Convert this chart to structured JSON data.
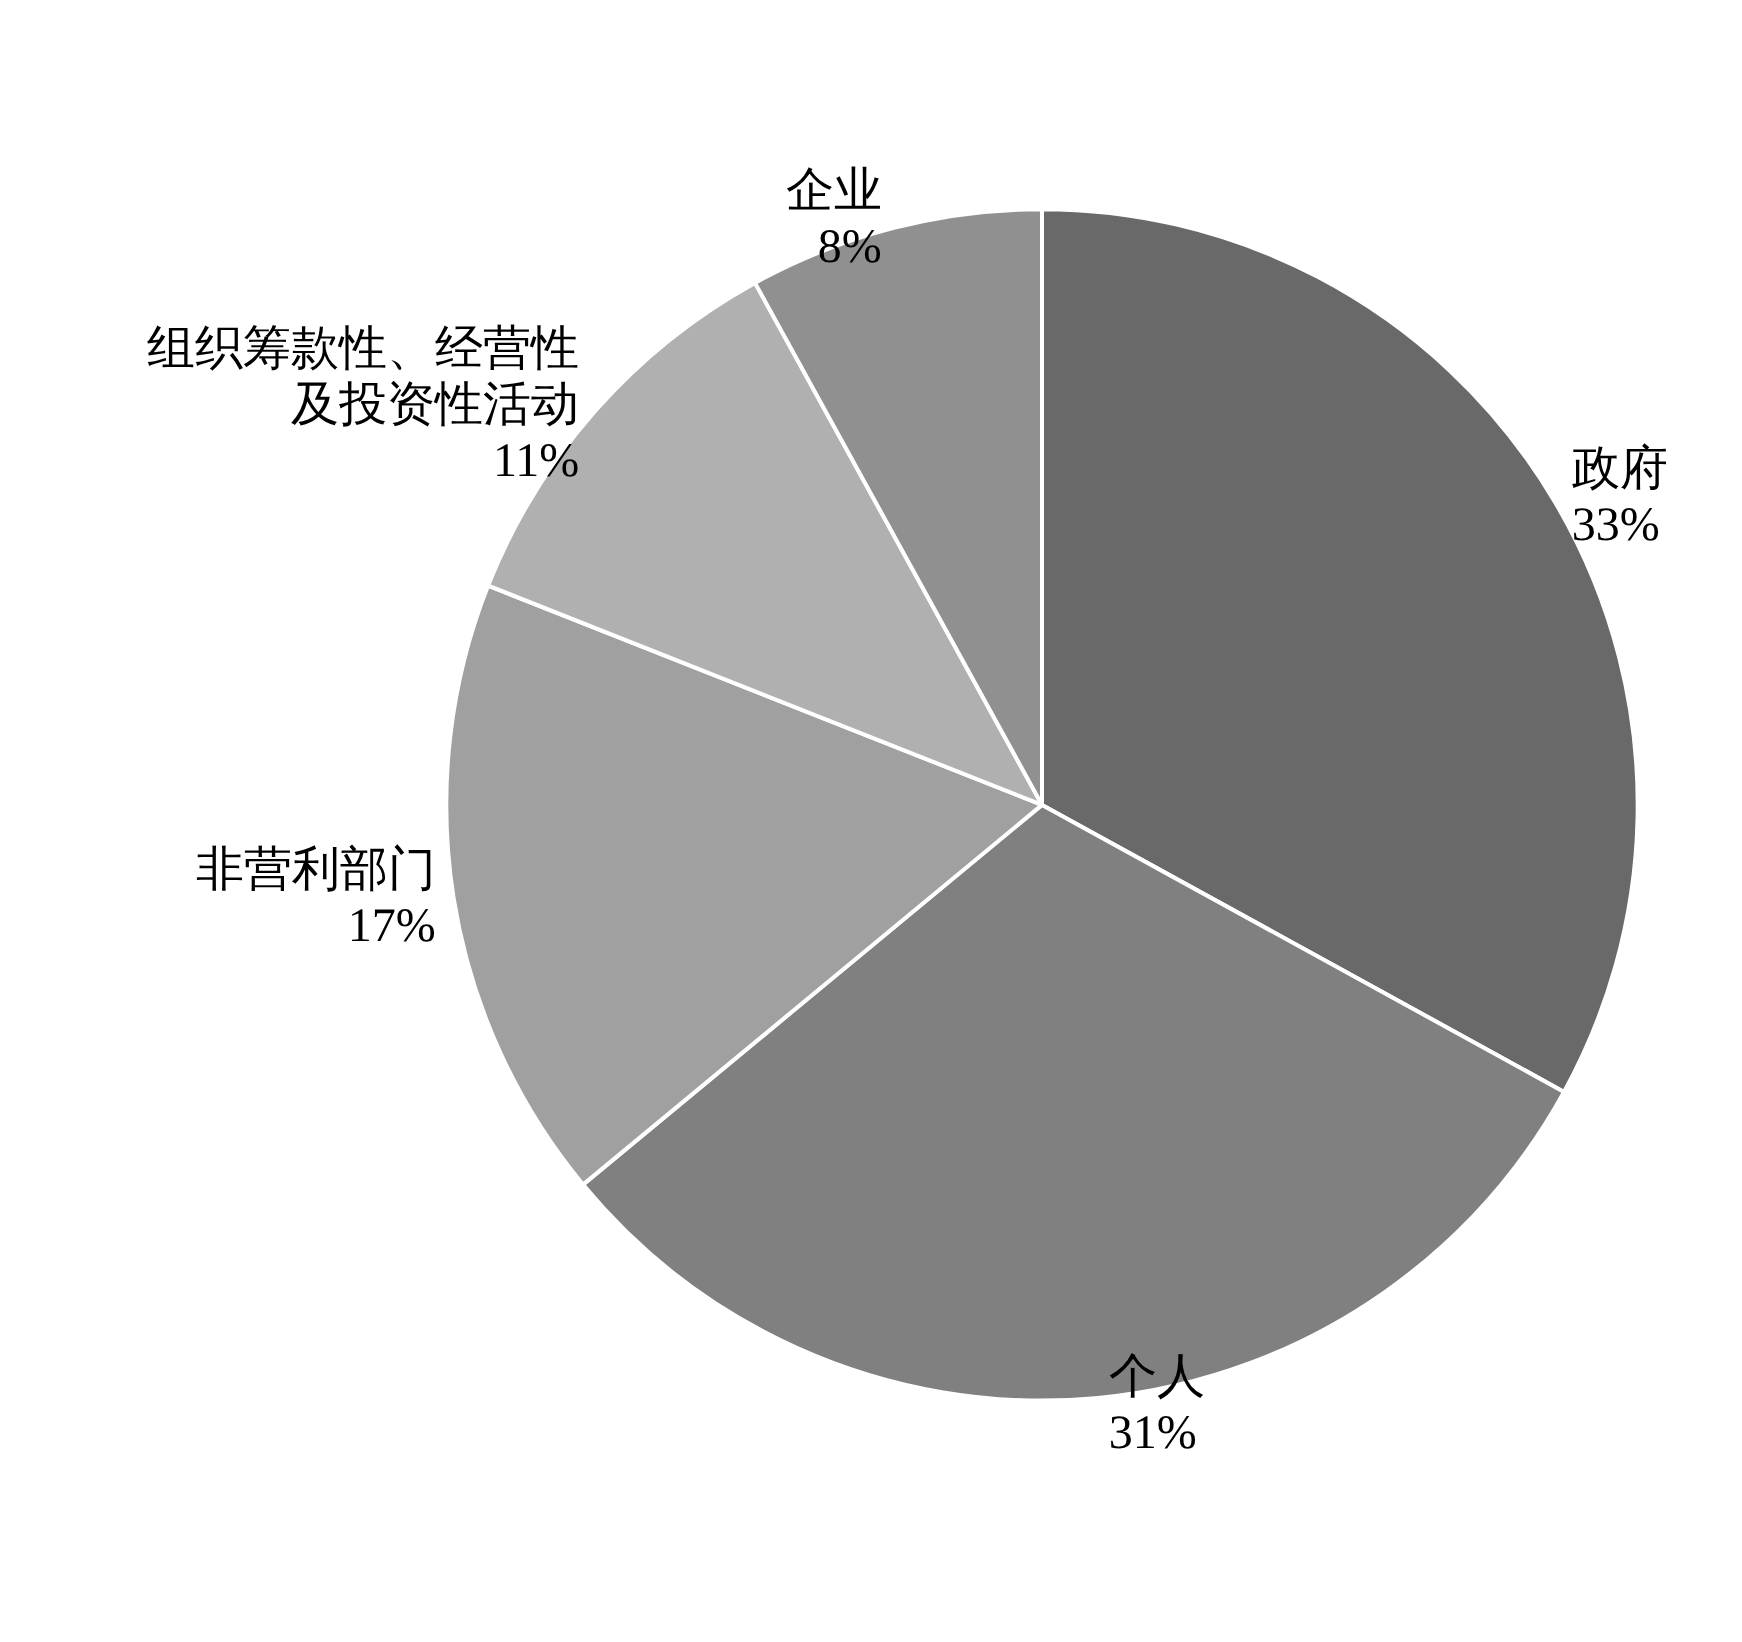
{
  "chart_data": {
    "type": "pie",
    "categories": [
      "政府",
      "个人",
      "非营利部门",
      "组织筹款性、经营性及投资性活动",
      "企业"
    ],
    "values": [
      33,
      31,
      17,
      11,
      8
    ],
    "value_labels": [
      "33%",
      "31%",
      "17%",
      "11%",
      "8%"
    ],
    "colors": [
      "#696969",
      "#808080",
      "#a0a0a0",
      "#b0b0b0",
      "#909090"
    ],
    "legend": false
  }
}
